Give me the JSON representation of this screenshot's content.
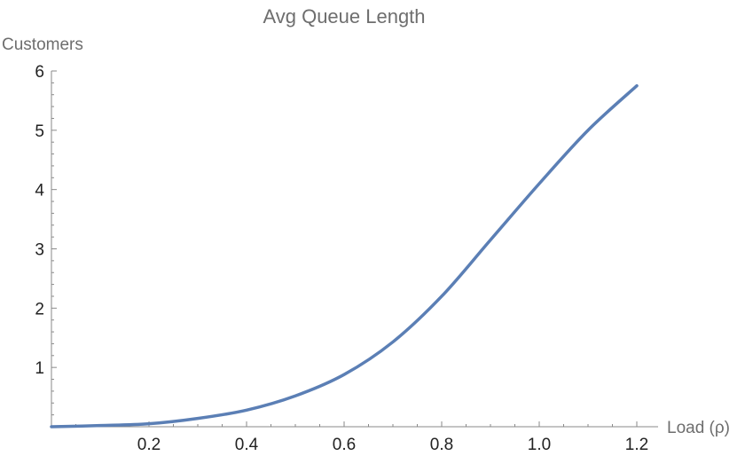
{
  "chart_data": {
    "type": "line",
    "title": "Avg Queue Length",
    "xlabel": "Load (ρ)",
    "ylabel": "Customers",
    "xlim": [
      0,
      1.2
    ],
    "ylim": [
      0,
      6
    ],
    "x_ticks": [
      "0.2",
      "0.4",
      "0.6",
      "0.8",
      "1.0",
      "1.2"
    ],
    "y_ticks": [
      "1",
      "2",
      "3",
      "4",
      "5",
      "6"
    ],
    "grid": false,
    "series": [
      {
        "color": "#5b7fb5",
        "x": [
          0,
          0.1,
          0.2,
          0.3,
          0.4,
          0.5,
          0.6,
          0.7,
          0.8,
          0.9,
          1.0,
          1.1,
          1.2
        ],
        "y": [
          0,
          0.02,
          0.05,
          0.14,
          0.28,
          0.52,
          0.88,
          1.43,
          2.2,
          3.15,
          4.1,
          5.0,
          5.75
        ]
      }
    ]
  }
}
